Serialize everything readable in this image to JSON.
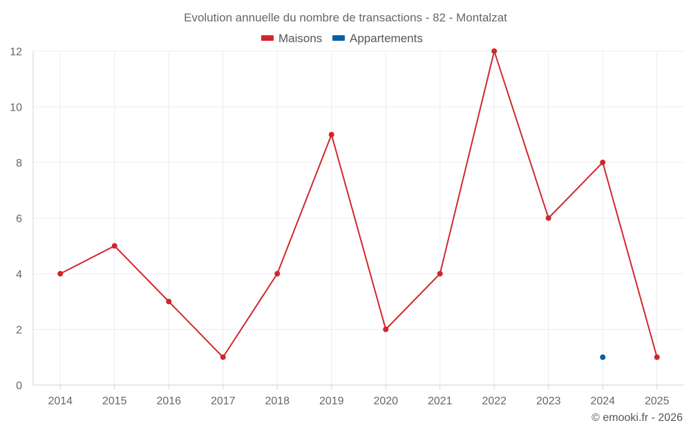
{
  "chart_data": {
    "type": "line",
    "title": "Evolution annuelle du nombre de transactions - 82 - Montalzat",
    "categories": [
      "2014",
      "2015",
      "2016",
      "2017",
      "2018",
      "2019",
      "2020",
      "2021",
      "2022",
      "2023",
      "2024",
      "2025"
    ],
    "series": [
      {
        "name": "Maisons",
        "color": "#d0262b",
        "values": [
          4,
          5,
          3,
          1,
          4,
          9,
          2,
          4,
          12,
          6,
          8,
          1
        ]
      },
      {
        "name": "Appartements",
        "color": "#0a5fa0",
        "values": [
          null,
          null,
          null,
          null,
          null,
          null,
          null,
          null,
          null,
          null,
          1,
          null
        ]
      }
    ],
    "ylim": [
      0,
      12
    ],
    "yticks": [
      0,
      2,
      4,
      6,
      8,
      10,
      12
    ],
    "xlabel": "",
    "ylabel": "",
    "grid": true,
    "legend_position": "top-center"
  },
  "credit": "© emooki.fr - 2026"
}
